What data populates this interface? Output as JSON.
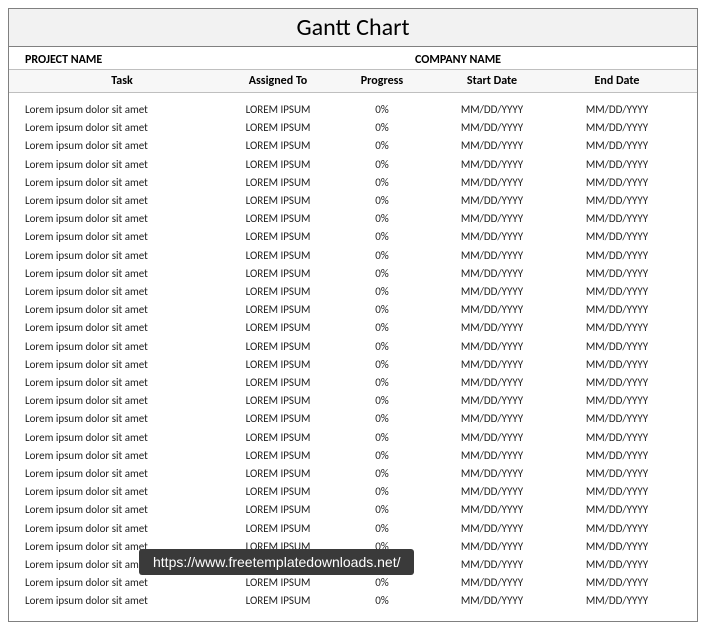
{
  "title": "Gantt Chart",
  "header": {
    "project_label": "PROJECT NAME",
    "company_label": "COMPANY NAME"
  },
  "columns": {
    "task": "Task",
    "assigned": "Assigned To",
    "progress": "Progress",
    "start": "Start Date",
    "end": "End Date"
  },
  "rows": [
    {
      "task": "Lorem ipsum dolor sit amet",
      "assigned": "LOREM IPSUM",
      "progress": "0%",
      "start": "MM/DD/YYYY",
      "end": "MM/DD/YYYY"
    },
    {
      "task": "Lorem ipsum dolor sit amet",
      "assigned": "LOREM IPSUM",
      "progress": "0%",
      "start": "MM/DD/YYYY",
      "end": "MM/DD/YYYY"
    },
    {
      "task": "Lorem ipsum dolor sit amet",
      "assigned": "LOREM IPSUM",
      "progress": "0%",
      "start": "MM/DD/YYYY",
      "end": "MM/DD/YYYY"
    },
    {
      "task": "Lorem ipsum dolor sit amet",
      "assigned": "LOREM IPSUM",
      "progress": "0%",
      "start": "MM/DD/YYYY",
      "end": "MM/DD/YYYY"
    },
    {
      "task": "Lorem ipsum dolor sit amet",
      "assigned": "LOREM IPSUM",
      "progress": "0%",
      "start": "MM/DD/YYYY",
      "end": "MM/DD/YYYY"
    },
    {
      "task": "Lorem ipsum dolor sit amet",
      "assigned": "LOREM IPSUM",
      "progress": "0%",
      "start": "MM/DD/YYYY",
      "end": "MM/DD/YYYY"
    },
    {
      "task": "Lorem ipsum dolor sit amet",
      "assigned": "LOREM IPSUM",
      "progress": "0%",
      "start": "MM/DD/YYYY",
      "end": "MM/DD/YYYY"
    },
    {
      "task": "Lorem ipsum dolor sit amet",
      "assigned": "LOREM IPSUM",
      "progress": "0%",
      "start": "MM/DD/YYYY",
      "end": "MM/DD/YYYY"
    },
    {
      "task": "Lorem ipsum dolor sit amet",
      "assigned": "LOREM IPSUM",
      "progress": "0%",
      "start": "MM/DD/YYYY",
      "end": "MM/DD/YYYY"
    },
    {
      "task": "Lorem ipsum dolor sit amet",
      "assigned": "LOREM IPSUM",
      "progress": "0%",
      "start": "MM/DD/YYYY",
      "end": "MM/DD/YYYY"
    },
    {
      "task": "Lorem ipsum dolor sit amet",
      "assigned": "LOREM IPSUM",
      "progress": "0%",
      "start": "MM/DD/YYYY",
      "end": "MM/DD/YYYY"
    },
    {
      "task": "Lorem ipsum dolor sit amet",
      "assigned": "LOREM IPSUM",
      "progress": "0%",
      "start": "MM/DD/YYYY",
      "end": "MM/DD/YYYY"
    },
    {
      "task": "Lorem ipsum dolor sit amet",
      "assigned": "LOREM IPSUM",
      "progress": "0%",
      "start": "MM/DD/YYYY",
      "end": "MM/DD/YYYY"
    },
    {
      "task": "Lorem ipsum dolor sit amet",
      "assigned": "LOREM IPSUM",
      "progress": "0%",
      "start": "MM/DD/YYYY",
      "end": "MM/DD/YYYY"
    },
    {
      "task": "Lorem ipsum dolor sit amet",
      "assigned": "LOREM IPSUM",
      "progress": "0%",
      "start": "MM/DD/YYYY",
      "end": "MM/DD/YYYY"
    },
    {
      "task": "Lorem ipsum dolor sit amet",
      "assigned": "LOREM IPSUM",
      "progress": "0%",
      "start": "MM/DD/YYYY",
      "end": "MM/DD/YYYY"
    },
    {
      "task": "Lorem ipsum dolor sit amet",
      "assigned": "LOREM IPSUM",
      "progress": "0%",
      "start": "MM/DD/YYYY",
      "end": "MM/DD/YYYY"
    },
    {
      "task": "Lorem ipsum dolor sit amet",
      "assigned": "LOREM IPSUM",
      "progress": "0%",
      "start": "MM/DD/YYYY",
      "end": "MM/DD/YYYY"
    },
    {
      "task": "Lorem ipsum dolor sit amet",
      "assigned": "LOREM IPSUM",
      "progress": "0%",
      "start": "MM/DD/YYYY",
      "end": "MM/DD/YYYY"
    },
    {
      "task": "Lorem ipsum dolor sit amet",
      "assigned": "LOREM IPSUM",
      "progress": "0%",
      "start": "MM/DD/YYYY",
      "end": "MM/DD/YYYY"
    },
    {
      "task": "Lorem ipsum dolor sit amet",
      "assigned": "LOREM IPSUM",
      "progress": "0%",
      "start": "MM/DD/YYYY",
      "end": "MM/DD/YYYY"
    },
    {
      "task": "Lorem ipsum dolor sit amet",
      "assigned": "LOREM IPSUM",
      "progress": "0%",
      "start": "MM/DD/YYYY",
      "end": "MM/DD/YYYY"
    },
    {
      "task": "Lorem ipsum dolor sit amet",
      "assigned": "LOREM IPSUM",
      "progress": "0%",
      "start": "MM/DD/YYYY",
      "end": "MM/DD/YYYY"
    },
    {
      "task": "Lorem ipsum dolor sit amet",
      "assigned": "LOREM IPSUM",
      "progress": "0%",
      "start": "MM/DD/YYYY",
      "end": "MM/DD/YYYY"
    },
    {
      "task": "Lorem ipsum dolor sit amet",
      "assigned": "LOREM IPSUM",
      "progress": "0%",
      "start": "MM/DD/YYYY",
      "end": "MM/DD/YYYY"
    },
    {
      "task": "Lorem ipsum dolor sit amet",
      "assigned": "LOREM IPSUM",
      "progress": "0%",
      "start": "MM/DD/YYYY",
      "end": "MM/DD/YYYY"
    },
    {
      "task": "Lorem ipsum dolor sit amet",
      "assigned": "LOREM IPSUM",
      "progress": "0%",
      "start": "MM/DD/YYYY",
      "end": "MM/DD/YYYY"
    },
    {
      "task": "Lorem ipsum dolor sit amet",
      "assigned": "LOREM IPSUM",
      "progress": "0%",
      "start": "MM/DD/YYYY",
      "end": "MM/DD/YYYY"
    }
  ],
  "watermark": "https://www.freetemplatedownloads.net/",
  "styling": {
    "title_bg": "#f2f2f2",
    "border_color": "#808080",
    "header_bg": "#f7f7f7",
    "text_color": "#222222",
    "watermark_bg": "#3a3a3a",
    "watermark_text": "#ffffff",
    "title_fontsize": 24,
    "header_fontsize": 12,
    "body_fontsize": 11,
    "row_height": 18.2
  }
}
